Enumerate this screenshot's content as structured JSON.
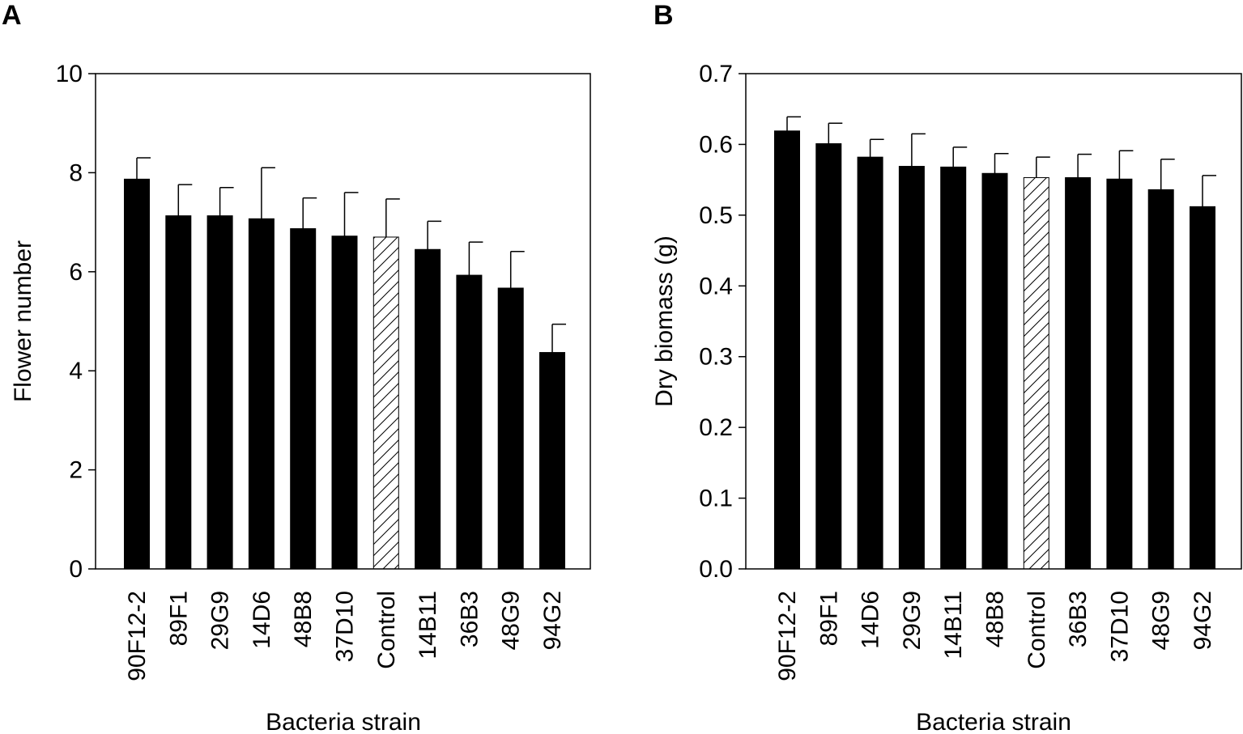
{
  "chart_data": [
    {
      "panel": "A",
      "type": "bar",
      "title": "",
      "xlabel": "Bacteria strain",
      "ylabel": "Flower number",
      "ylim": [
        0,
        10
      ],
      "yticks": [
        0,
        2,
        4,
        6,
        8,
        10
      ],
      "ytick_labels": [
        "0",
        "2",
        "4",
        "6",
        "8",
        "10"
      ],
      "categories": [
        "90F12-2",
        "89F1",
        "29G9",
        "14D6",
        "48B8",
        "37D10",
        "Control",
        "14B11",
        "36B3",
        "48G9",
        "94G2"
      ],
      "values": [
        7.87,
        7.13,
        7.13,
        7.07,
        6.87,
        6.72,
        6.7,
        6.45,
        5.93,
        5.67,
        4.37
      ],
      "errors": [
        0.43,
        0.63,
        0.57,
        1.03,
        0.62,
        0.88,
        0.77,
        0.57,
        0.67,
        0.74,
        0.57
      ],
      "highlight": "Control",
      "bar_color": "#000000"
    },
    {
      "panel": "B",
      "type": "bar",
      "title": "",
      "xlabel": "Bacteria strain",
      "ylabel": "Dry biomass (g)",
      "ylim": [
        0,
        0.7
      ],
      "yticks": [
        0,
        0.1,
        0.2,
        0.3,
        0.4,
        0.5,
        0.6,
        0.7
      ],
      "ytick_labels": [
        "0.0",
        "0.1",
        "0.2",
        "0.3",
        "0.4",
        "0.5",
        "0.6",
        "0.7"
      ],
      "categories": [
        "90F12-2",
        "89F1",
        "14D6",
        "29G9",
        "14B11",
        "48B8",
        "Control",
        "36B3",
        "37D10",
        "48G9",
        "94G2"
      ],
      "values": [
        0.619,
        0.601,
        0.582,
        0.569,
        0.568,
        0.559,
        0.553,
        0.553,
        0.551,
        0.536,
        0.512
      ],
      "errors": [
        0.02,
        0.029,
        0.025,
        0.046,
        0.028,
        0.028,
        0.029,
        0.033,
        0.04,
        0.043,
        0.044
      ],
      "highlight": "Control",
      "bar_color": "#000000"
    }
  ]
}
